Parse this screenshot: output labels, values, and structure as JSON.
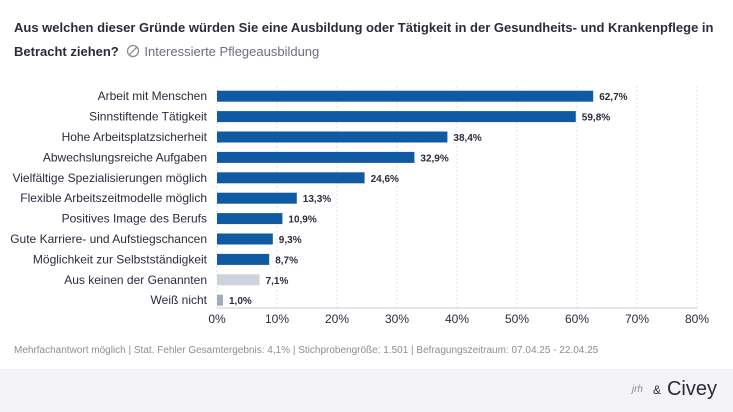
{
  "title": "Aus welchen dieser Gründe würden Sie eine Ausbildung oder Tätigkeit in der Gesundheits- und Krankenpflege in Betracht ziehen?",
  "subtitle": "Interessierte Pflegeausbildung",
  "footnote": "Mehrfachantwort möglich | Stat. Fehler Gesamtergebnis: 4,1% | Stichprobengröße: 1.501 | Befragungszeitraum: 07.04.25 - 22.04.25",
  "brand": {
    "partner": "jrh",
    "amp": "&",
    "name": "Civey"
  },
  "colors": {
    "primary": "#0f5aa3",
    "neutral": "#cdd3dc",
    "dont_know": "#a3acb9"
  },
  "chart_data": {
    "type": "bar",
    "orientation": "horizontal",
    "title": "Aus welchen dieser Gründe würden Sie eine Ausbildung oder Tätigkeit in der Gesundheits- und Krankenpflege in Betracht ziehen?",
    "categories": [
      "Arbeit mit Menschen",
      "Sinnstiftende Tätigkeit",
      "Hohe Arbeitsplatzsicherheit",
      "Abwechslungsreiche Aufgaben",
      "Vielfältige Spezialisierungen möglich",
      "Flexible Arbeitszeitmodelle möglich",
      "Positives Image des Berufs",
      "Gute Karriere- und Aufstiegschancen",
      "Möglichkeit zur Selbstständigkeit",
      "Aus keinen der Genannten",
      "Weiß nicht"
    ],
    "values": [
      62.7,
      59.8,
      38.4,
      32.9,
      24.6,
      13.3,
      10.9,
      9.3,
      8.7,
      7.1,
      1.0
    ],
    "value_labels": [
      "62,7%",
      "59,8%",
      "38,4%",
      "32,9%",
      "24,6%",
      "13,3%",
      "10,9%",
      "9,3%",
      "8,7%",
      "7,1%",
      "1,0%"
    ],
    "bar_kind": [
      "primary",
      "primary",
      "primary",
      "primary",
      "primary",
      "primary",
      "primary",
      "primary",
      "primary",
      "neutral",
      "dont_know"
    ],
    "xlim": [
      0,
      80
    ],
    "xticks": [
      0,
      10,
      20,
      30,
      40,
      50,
      60,
      70,
      80
    ],
    "xtick_labels": [
      "0%",
      "10%",
      "20%",
      "30%",
      "40%",
      "50%",
      "60%",
      "70%",
      "80%"
    ],
    "grid": true,
    "xlabel": "",
    "ylabel": ""
  }
}
